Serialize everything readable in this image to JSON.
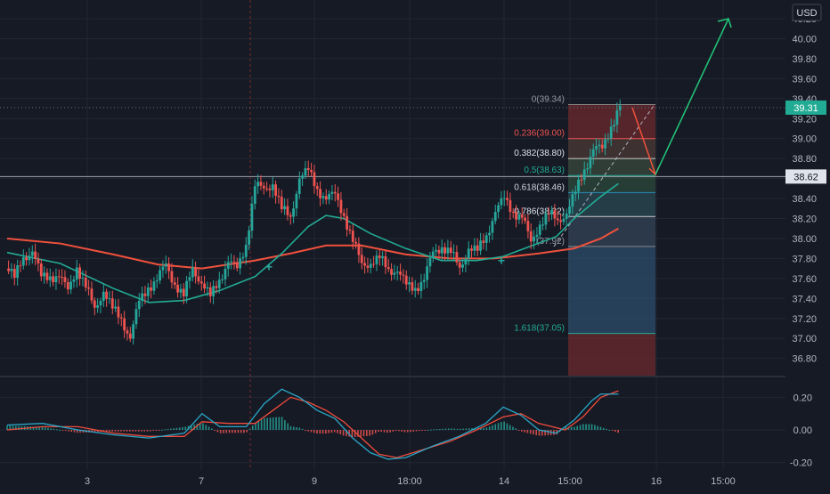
{
  "currency": "USD",
  "current_price_label": "39.31",
  "target_price_label": "38.62",
  "colors": {
    "background": "#161a25",
    "grid": "#232733",
    "up": "#26a69a",
    "down": "#ef5350",
    "ma_fast": "#22ab94",
    "ma_slow": "#f0513c",
    "macd": "#2aa8c8",
    "signal": "#ef4b3c",
    "arrow_up": "#22c77a",
    "arrow_down": "#f0513c",
    "axis_text": "#b2b5be"
  },
  "chart_data": [
    {
      "type": "candlestick",
      "title": "",
      "y_axis": {
        "ticks": [
          "40.20",
          "40.00",
          "39.80",
          "39.60",
          "39.40",
          "39.20",
          "39.00",
          "38.80",
          "38.60",
          "38.40",
          "38.20",
          "38.00",
          "37.80",
          "37.60",
          "37.40",
          "37.20",
          "37.00",
          "36.80"
        ],
        "range": [
          36.7,
          40.33
        ]
      },
      "x_axis": {
        "ticks": [
          "3",
          "7",
          "9",
          "18:00",
          "14",
          "15:00",
          "16",
          "15:00"
        ]
      },
      "price_path": [
        {
          "x": 0,
          "y": 37.7
        },
        {
          "x": 1,
          "y": 37.62
        },
        {
          "x": 2,
          "y": 37.84
        },
        {
          "x": 3,
          "y": 37.82
        },
        {
          "x": 4,
          "y": 37.66
        },
        {
          "x": 5,
          "y": 37.62
        },
        {
          "x": 6,
          "y": 37.58
        },
        {
          "x": 7,
          "y": 37.54
        },
        {
          "x": 8,
          "y": 37.68
        },
        {
          "x": 9,
          "y": 37.5
        },
        {
          "x": 10,
          "y": 37.35
        },
        {
          "x": 11,
          "y": 37.42
        },
        {
          "x": 12,
          "y": 37.32
        },
        {
          "x": 13,
          "y": 37.22
        },
        {
          "x": 14,
          "y": 36.95
        },
        {
          "x": 15,
          "y": 37.42
        },
        {
          "x": 16,
          "y": 37.5
        },
        {
          "x": 17,
          "y": 37.55
        },
        {
          "x": 18,
          "y": 37.8
        },
        {
          "x": 19,
          "y": 37.5
        },
        {
          "x": 20,
          "y": 37.42
        },
        {
          "x": 21,
          "y": 37.75
        },
        {
          "x": 22,
          "y": 37.5
        },
        {
          "x": 23,
          "y": 37.45
        },
        {
          "x": 24,
          "y": 37.6
        },
        {
          "x": 25,
          "y": 37.72
        },
        {
          "x": 26,
          "y": 37.75
        },
        {
          "x": 27,
          "y": 37.92
        },
        {
          "x": 28,
          "y": 38.5
        },
        {
          "x": 29,
          "y": 38.55
        },
        {
          "x": 30,
          "y": 38.5
        },
        {
          "x": 31,
          "y": 38.3
        },
        {
          "x": 32,
          "y": 38.25
        },
        {
          "x": 33,
          "y": 38.55
        },
        {
          "x": 34,
          "y": 38.72
        },
        {
          "x": 35,
          "y": 38.5
        },
        {
          "x": 36,
          "y": 38.35
        },
        {
          "x": 37,
          "y": 38.5
        },
        {
          "x": 38,
          "y": 38.2
        },
        {
          "x": 39,
          "y": 37.95
        },
        {
          "x": 40,
          "y": 37.8
        },
        {
          "x": 41,
          "y": 37.7
        },
        {
          "x": 42,
          "y": 37.82
        },
        {
          "x": 43,
          "y": 37.72
        },
        {
          "x": 44,
          "y": 37.62
        },
        {
          "x": 45,
          "y": 37.58
        },
        {
          "x": 46,
          "y": 37.5
        },
        {
          "x": 47,
          "y": 37.55
        },
        {
          "x": 48,
          "y": 37.92
        },
        {
          "x": 49,
          "y": 37.88
        },
        {
          "x": 50,
          "y": 37.85
        },
        {
          "x": 51,
          "y": 37.75
        },
        {
          "x": 52,
          "y": 37.85
        },
        {
          "x": 53,
          "y": 37.9
        },
        {
          "x": 54,
          "y": 38.05
        },
        {
          "x": 55,
          "y": 38.22
        },
        {
          "x": 56,
          "y": 38.45
        },
        {
          "x": 57,
          "y": 38.25
        },
        {
          "x": 58,
          "y": 38.18
        },
        {
          "x": 59,
          "y": 38.02
        },
        {
          "x": 60,
          "y": 38.1
        },
        {
          "x": 61,
          "y": 38.25
        },
        {
          "x": 62,
          "y": 38.22
        },
        {
          "x": 63,
          "y": 38.2
        },
        {
          "x": 64,
          "y": 38.5
        },
        {
          "x": 65,
          "y": 38.7
        },
        {
          "x": 66,
          "y": 38.85
        },
        {
          "x": 67,
          "y": 38.95
        },
        {
          "x": 68,
          "y": 39.1
        },
        {
          "x": 69,
          "y": 39.31
        }
      ],
      "ma_fast": [
        {
          "x": 0,
          "y": 37.86
        },
        {
          "x": 6,
          "y": 37.75
        },
        {
          "x": 12,
          "y": 37.5
        },
        {
          "x": 16,
          "y": 37.36
        },
        {
          "x": 20,
          "y": 37.38
        },
        {
          "x": 24,
          "y": 37.48
        },
        {
          "x": 28,
          "y": 37.62
        },
        {
          "x": 31,
          "y": 37.85
        },
        {
          "x": 34,
          "y": 38.12
        },
        {
          "x": 36,
          "y": 38.23
        },
        {
          "x": 38,
          "y": 38.2
        },
        {
          "x": 41,
          "y": 38.05
        },
        {
          "x": 45,
          "y": 37.9
        },
        {
          "x": 49,
          "y": 37.78
        },
        {
          "x": 53,
          "y": 37.78
        },
        {
          "x": 56,
          "y": 37.82
        },
        {
          "x": 59,
          "y": 37.92
        },
        {
          "x": 62,
          "y": 38.02
        },
        {
          "x": 64,
          "y": 38.2
        },
        {
          "x": 67,
          "y": 38.42
        },
        {
          "x": 69,
          "y": 38.55
        }
      ],
      "ma_slow": [
        {
          "x": 0,
          "y": 38.0
        },
        {
          "x": 6,
          "y": 37.95
        },
        {
          "x": 12,
          "y": 37.84
        },
        {
          "x": 17,
          "y": 37.74
        },
        {
          "x": 22,
          "y": 37.7
        },
        {
          "x": 28,
          "y": 37.78
        },
        {
          "x": 32,
          "y": 37.85
        },
        {
          "x": 36,
          "y": 37.93
        },
        {
          "x": 40,
          "y": 37.93
        },
        {
          "x": 45,
          "y": 37.84
        },
        {
          "x": 50,
          "y": 37.8
        },
        {
          "x": 55,
          "y": 37.8
        },
        {
          "x": 60,
          "y": 37.85
        },
        {
          "x": 64,
          "y": 37.9
        },
        {
          "x": 67,
          "y": 38.0
        },
        {
          "x": 69,
          "y": 38.1
        }
      ],
      "fibonacci": [
        {
          "level": "0",
          "price": 39.34,
          "label": "0(39.34)"
        },
        {
          "level": "0.236",
          "price": 39.0,
          "label": "0.236(39.00)"
        },
        {
          "level": "0.382",
          "price": 38.8,
          "label": "0.382(38.80)"
        },
        {
          "level": "0.5",
          "price": 38.63,
          "label": "0.5(38.63)"
        },
        {
          "level": "0.618",
          "price": 38.46,
          "label": "0.618(38.46)"
        },
        {
          "level": "0.786",
          "price": 38.22,
          "label": "0.786(38.22)"
        },
        {
          "level": "1",
          "price": 37.92,
          "label": "(37.92)"
        },
        {
          "level": "1.618",
          "price": 37.05,
          "label": "1.618(37.05)"
        }
      ],
      "projection": {
        "down_target": 38.62,
        "up_target": 40.2
      }
    },
    {
      "type": "histogram",
      "title": "",
      "y_axis": {
        "ticks": [
          "0.20",
          "0.00",
          "-0.20"
        ],
        "range": [
          -0.24,
          0.27
        ]
      },
      "macd": [
        {
          "x": 0,
          "y": 0.03
        },
        {
          "x": 4,
          "y": 0.04
        },
        {
          "x": 8,
          "y": 0.0
        },
        {
          "x": 12,
          "y": -0.03
        },
        {
          "x": 16,
          "y": -0.05
        },
        {
          "x": 20,
          "y": -0.02
        },
        {
          "x": 22,
          "y": 0.1
        },
        {
          "x": 24,
          "y": 0.02
        },
        {
          "x": 27,
          "y": 0.02
        },
        {
          "x": 29,
          "y": 0.16
        },
        {
          "x": 31,
          "y": 0.25
        },
        {
          "x": 33,
          "y": 0.2
        },
        {
          "x": 35,
          "y": 0.12
        },
        {
          "x": 37,
          "y": 0.07
        },
        {
          "x": 39,
          "y": -0.05
        },
        {
          "x": 41,
          "y": -0.14
        },
        {
          "x": 43,
          "y": -0.18
        },
        {
          "x": 45,
          "y": -0.17
        },
        {
          "x": 48,
          "y": -0.1
        },
        {
          "x": 51,
          "y": -0.04
        },
        {
          "x": 54,
          "y": 0.04
        },
        {
          "x": 56,
          "y": 0.14
        },
        {
          "x": 58,
          "y": 0.09
        },
        {
          "x": 60,
          "y": 0.0
        },
        {
          "x": 62,
          "y": -0.02
        },
        {
          "x": 64,
          "y": 0.06
        },
        {
          "x": 66,
          "y": 0.18
        },
        {
          "x": 67,
          "y": 0.22
        },
        {
          "x": 69,
          "y": 0.22
        }
      ],
      "signal": [
        {
          "x": 0,
          "y": 0.0
        },
        {
          "x": 4,
          "y": 0.02
        },
        {
          "x": 8,
          "y": 0.02
        },
        {
          "x": 12,
          "y": -0.02
        },
        {
          "x": 16,
          "y": -0.04
        },
        {
          "x": 20,
          "y": -0.04
        },
        {
          "x": 22,
          "y": 0.05
        },
        {
          "x": 25,
          "y": 0.04
        },
        {
          "x": 28,
          "y": 0.04
        },
        {
          "x": 30,
          "y": 0.12
        },
        {
          "x": 32,
          "y": 0.2
        },
        {
          "x": 34,
          "y": 0.17
        },
        {
          "x": 36,
          "y": 0.12
        },
        {
          "x": 38,
          "y": 0.05
        },
        {
          "x": 40,
          "y": -0.05
        },
        {
          "x": 42,
          "y": -0.15
        },
        {
          "x": 44,
          "y": -0.17
        },
        {
          "x": 47,
          "y": -0.12
        },
        {
          "x": 50,
          "y": -0.07
        },
        {
          "x": 53,
          "y": 0.0
        },
        {
          "x": 56,
          "y": 0.08
        },
        {
          "x": 58,
          "y": 0.1
        },
        {
          "x": 60,
          "y": 0.04
        },
        {
          "x": 63,
          "y": 0.0
        },
        {
          "x": 65,
          "y": 0.08
        },
        {
          "x": 67,
          "y": 0.2
        },
        {
          "x": 69,
          "y": 0.24
        }
      ]
    }
  ]
}
